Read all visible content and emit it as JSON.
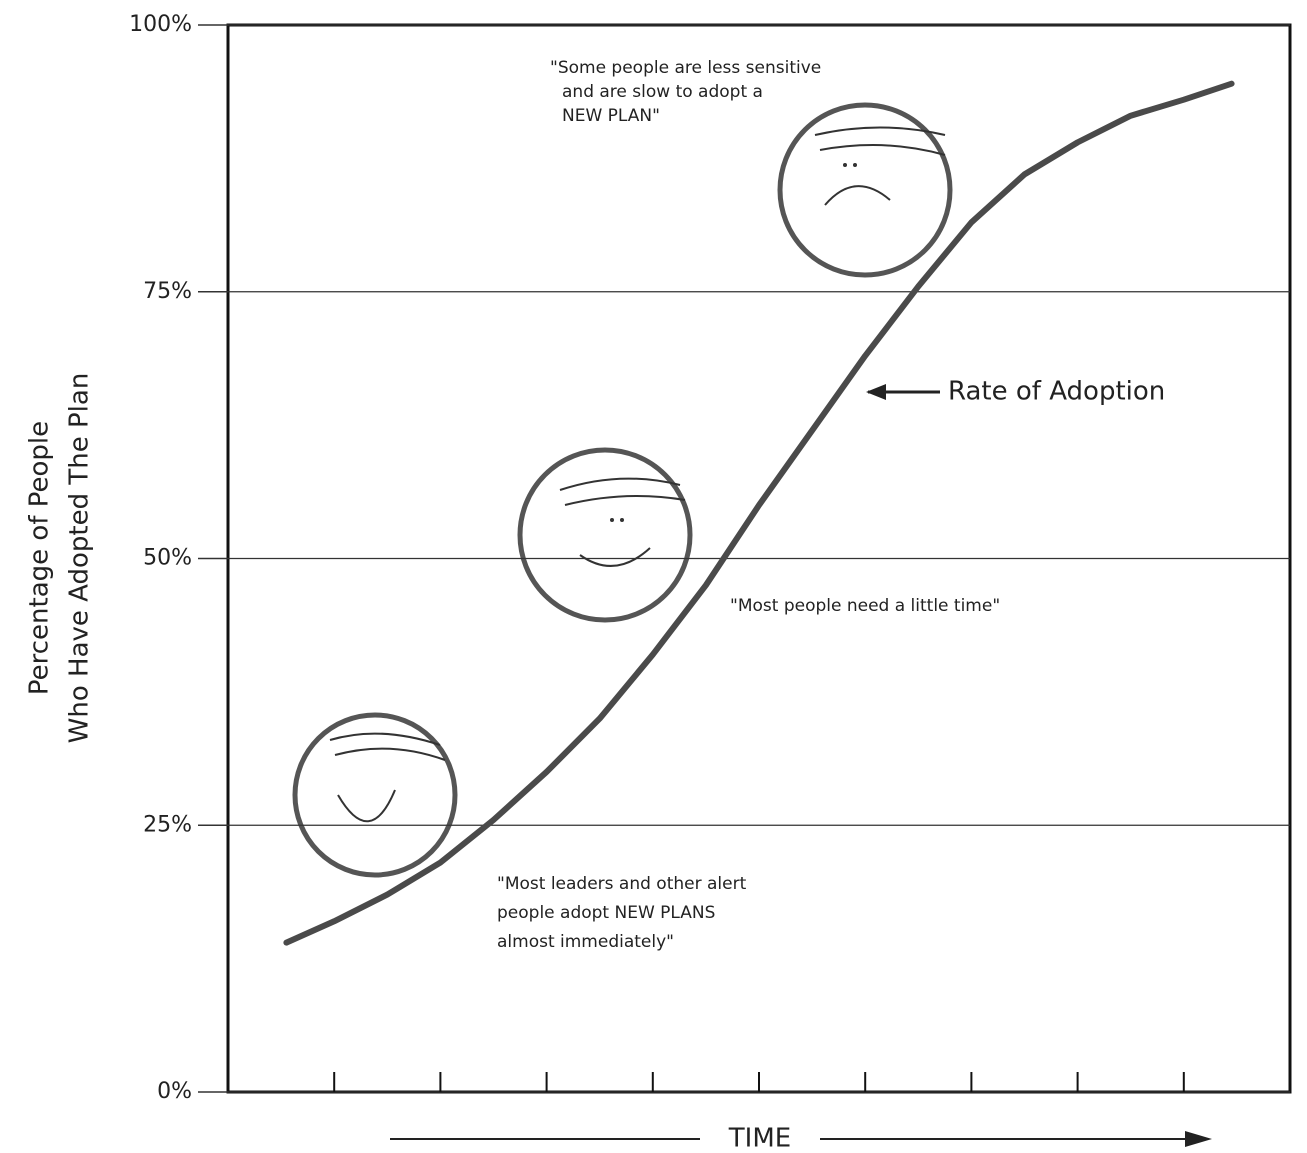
{
  "chart_data": {
    "type": "line",
    "y_label": [
      "Percentage of People",
      "Who Have Adopted The Plan"
    ],
    "x_label": "TIME",
    "x": [
      0.55,
      1,
      1.5,
      2,
      2.5,
      3,
      3.5,
      4,
      4.5,
      5,
      5.5,
      6,
      6.5,
      7,
      7.5,
      8,
      8.5,
      9,
      9.45
    ],
    "values": [
      14,
      16,
      18.5,
      21.5,
      25.5,
      30,
      35,
      41,
      47.5,
      55,
      62,
      69,
      75.5,
      81.5,
      86,
      89,
      91.5,
      93,
      94.5
    ],
    "color": "#4a4a4a",
    "xlim": [
      0,
      10
    ],
    "xticks": [
      1,
      2,
      3,
      4,
      5,
      6,
      7,
      8,
      9
    ],
    "ylim": [
      0,
      100
    ],
    "yticks": [
      {
        "value": 0,
        "label": "0%"
      },
      {
        "value": 25,
        "label": "25%"
      },
      {
        "value": 50,
        "label": "50%"
      },
      {
        "value": 75,
        "label": "75%"
      },
      {
        "value": 100,
        "label": "100%"
      }
    ],
    "grid": true,
    "annotations": [
      [
        "\"Some people are less sensitive",
        "and are slow to adopt a",
        "NEW PLAN\""
      ],
      [
        "\"Most people need a little time\""
      ],
      [
        "\"Most leaders and other alert",
        "people adopt NEW PLANS",
        "almost immediately\""
      ],
      [
        "Rate of Adoption"
      ]
    ]
  }
}
